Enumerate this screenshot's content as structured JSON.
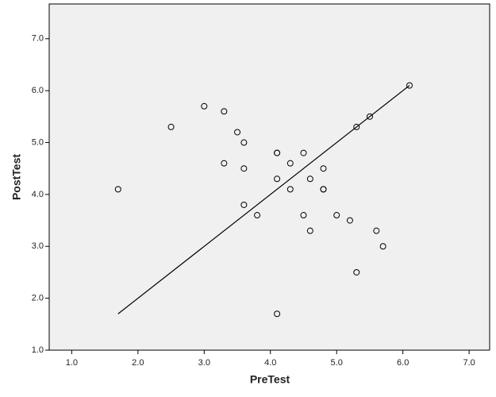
{
  "chart_data": {
    "type": "scatter",
    "x_label": "PreTest",
    "y_label": "PostTest",
    "xlim": [
      0.66,
      7.31
    ],
    "ylim": [
      1.0,
      7.67
    ],
    "xticks": [
      {
        "value": 1,
        "label": "1.0"
      },
      {
        "value": 2,
        "label": "2.0"
      },
      {
        "value": 3,
        "label": "3.0"
      },
      {
        "value": 4,
        "label": "4.0"
      },
      {
        "value": 5,
        "label": "5.0"
      },
      {
        "value": 6,
        "label": "6.0"
      },
      {
        "value": 7,
        "label": "7.0"
      }
    ],
    "yticks": [
      {
        "value": 1,
        "label": "1.0"
      },
      {
        "value": 2,
        "label": "2.0"
      },
      {
        "value": 3,
        "label": "3.0"
      },
      {
        "value": 4,
        "label": "4.0"
      },
      {
        "value": 5,
        "label": "5.0"
      },
      {
        "value": 6,
        "label": "6.0"
      },
      {
        "value": 7,
        "label": "7.0"
      }
    ],
    "background": "#f0f0f0",
    "series": [
      {
        "type": "scatter",
        "color": "#000000",
        "x": [
          1.7,
          2.5,
          3.0,
          3.3,
          3.3,
          3.5,
          3.6,
          3.6,
          3.6,
          3.8,
          4.1,
          4.1,
          4.1,
          4.1,
          4.3,
          4.3,
          4.5,
          4.5,
          4.6,
          4.6,
          4.8,
          4.8,
          4.8,
          5.0,
          5.2,
          5.3,
          5.3,
          5.5,
          5.6,
          5.7,
          6.1
        ],
        "y": [
          4.1,
          5.3,
          5.7,
          5.6,
          4.6,
          5.2,
          5.0,
          4.5,
          3.8,
          3.6,
          4.8,
          4.8,
          4.3,
          1.7,
          4.6,
          4.1,
          4.8,
          3.6,
          4.3,
          3.3,
          4.5,
          4.1,
          4.1,
          3.6,
          3.5,
          5.3,
          2.5,
          5.5,
          3.3,
          3.0,
          6.1
        ]
      },
      {
        "type": "line",
        "color": "#000000",
        "x": [
          1.7,
          6.1
        ],
        "y": [
          1.7,
          6.1
        ]
      }
    ]
  }
}
